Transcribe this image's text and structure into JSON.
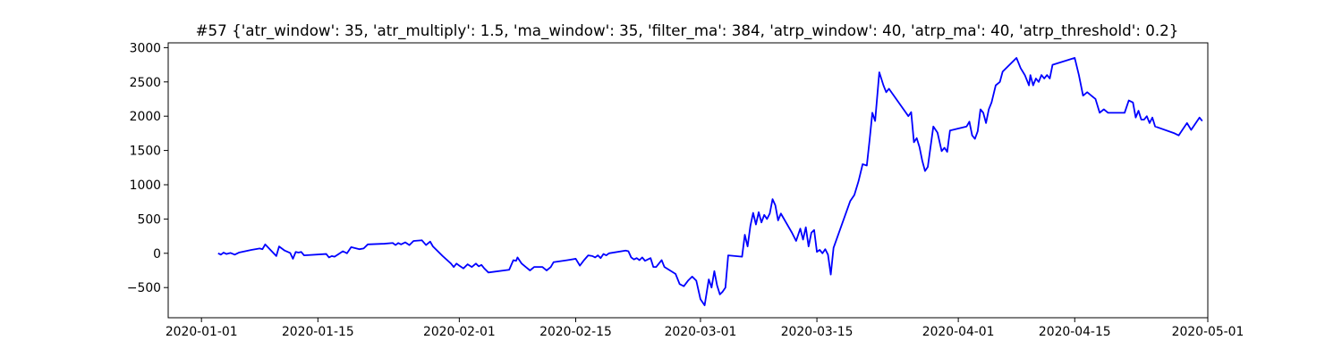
{
  "chart_data": {
    "type": "line",
    "title": "#57 {'atr_window': 35, 'atr_multiply': 1.5, 'ma_window': 35, 'filter_ma': 384, 'atrp_window': 40, 'atrp_ma': 40, 'atrp_threshold': 0.2}",
    "xlabel": "",
    "ylabel": "",
    "x_axis": {
      "kind": "date",
      "range": [
        "2019-12-28",
        "2020-05-01"
      ],
      "ticks": [
        "2020-01-01",
        "2020-01-15",
        "2020-02-01",
        "2020-02-15",
        "2020-03-01",
        "2020-03-15",
        "2020-04-01",
        "2020-04-15",
        "2020-05-01"
      ]
    },
    "y_axis": {
      "range": [
        -940,
        3070
      ],
      "ticks": [
        -500,
        0,
        500,
        1000,
        1500,
        2000,
        2500,
        3000
      ],
      "tick_labels": [
        "−500",
        "0",
        "500",
        "1000",
        "1500",
        "2000",
        "2500",
        "3000"
      ]
    },
    "grid": false,
    "legend": "none",
    "series": [
      {
        "color": "#0000ff",
        "points": [
          [
            "2020-01-03",
            0
          ],
          [
            "2020-01-03T08",
            -20
          ],
          [
            "2020-01-03T16",
            10
          ],
          [
            "2020-01-04",
            -10
          ],
          [
            "2020-01-04T12",
            5
          ],
          [
            "2020-01-05",
            -20
          ],
          [
            "2020-01-05T12",
            10
          ],
          [
            "2020-01-07",
            50
          ],
          [
            "2020-01-08",
            70
          ],
          [
            "2020-01-08T08",
            60
          ],
          [
            "2020-01-08T16",
            130
          ],
          [
            "2020-01-10",
            -40
          ],
          [
            "2020-01-10T08",
            100
          ],
          [
            "2020-01-11",
            40
          ],
          [
            "2020-01-11T16",
            5
          ],
          [
            "2020-01-12",
            -80
          ],
          [
            "2020-01-12T08",
            20
          ],
          [
            "2020-01-12T16",
            10
          ],
          [
            "2020-01-13",
            20
          ],
          [
            "2020-01-13T08",
            -30
          ],
          [
            "2020-01-16",
            -10
          ],
          [
            "2020-01-16T08",
            -60
          ],
          [
            "2020-01-16T16",
            -40
          ],
          [
            "2020-01-17",
            -50
          ],
          [
            "2020-01-17T12",
            -10
          ],
          [
            "2020-01-18",
            30
          ],
          [
            "2020-01-18T12",
            0
          ],
          [
            "2020-01-19",
            90
          ],
          [
            "2020-01-20",
            60
          ],
          [
            "2020-01-20T12",
            70
          ],
          [
            "2020-01-21",
            130
          ],
          [
            "2020-01-23",
            140
          ],
          [
            "2020-01-24",
            150
          ],
          [
            "2020-01-24T08",
            120
          ],
          [
            "2020-01-24T16",
            150
          ],
          [
            "2020-01-25",
            130
          ],
          [
            "2020-01-25T12",
            160
          ],
          [
            "2020-01-26",
            120
          ],
          [
            "2020-01-26T12",
            180
          ],
          [
            "2020-01-27T12",
            190
          ],
          [
            "2020-01-28",
            120
          ],
          [
            "2020-01-28T12",
            170
          ],
          [
            "2020-01-28T20",
            100
          ],
          [
            "2020-01-30",
            -40
          ],
          [
            "2020-01-31",
            -150
          ],
          [
            "2020-01-31T08",
            -200
          ],
          [
            "2020-01-31T16",
            -150
          ],
          [
            "2020-02-01",
            -180
          ],
          [
            "2020-02-01T12",
            -220
          ],
          [
            "2020-02-02",
            -160
          ],
          [
            "2020-02-02T12",
            -200
          ],
          [
            "2020-02-03",
            -150
          ],
          [
            "2020-02-03T08",
            -190
          ],
          [
            "2020-02-03T16",
            -170
          ],
          [
            "2020-02-04",
            -220
          ],
          [
            "2020-02-04T12",
            -280
          ],
          [
            "2020-02-07",
            -240
          ],
          [
            "2020-02-07T12",
            -100
          ],
          [
            "2020-02-07T20",
            -110
          ],
          [
            "2020-02-08",
            -60
          ],
          [
            "2020-02-08T12",
            -150
          ],
          [
            "2020-02-09",
            -200
          ],
          [
            "2020-02-09T12",
            -250
          ],
          [
            "2020-02-10",
            -200
          ],
          [
            "2020-02-11",
            -200
          ],
          [
            "2020-02-11T12",
            -250
          ],
          [
            "2020-02-12",
            -200
          ],
          [
            "2020-02-12T08",
            -130
          ],
          [
            "2020-02-14",
            -100
          ],
          [
            "2020-02-15",
            -80
          ],
          [
            "2020-02-15T12",
            -180
          ],
          [
            "2020-02-16",
            -100
          ],
          [
            "2020-02-16T12",
            -30
          ],
          [
            "2020-02-17",
            -40
          ],
          [
            "2020-02-17T08",
            -60
          ],
          [
            "2020-02-17T16",
            -30
          ],
          [
            "2020-02-18",
            -70
          ],
          [
            "2020-02-18T08",
            -10
          ],
          [
            "2020-02-18T16",
            -30
          ],
          [
            "2020-02-19",
            0
          ],
          [
            "2020-02-21",
            40
          ],
          [
            "2020-02-21T08",
            30
          ],
          [
            "2020-02-21T16",
            -60
          ],
          [
            "2020-02-22",
            -90
          ],
          [
            "2020-02-22T08",
            -70
          ],
          [
            "2020-02-22T16",
            -100
          ],
          [
            "2020-02-23",
            -60
          ],
          [
            "2020-02-23T08",
            -110
          ],
          [
            "2020-02-23T16",
            -90
          ],
          [
            "2020-02-24",
            -70
          ],
          [
            "2020-02-24T08",
            -200
          ],
          [
            "2020-02-24T16",
            -200
          ],
          [
            "2020-02-25",
            -150
          ],
          [
            "2020-02-25T08",
            -100
          ],
          [
            "2020-02-25T16",
            -200
          ],
          [
            "2020-02-27",
            -300
          ],
          [
            "2020-02-27T12",
            -450
          ],
          [
            "2020-02-28",
            -480
          ],
          [
            "2020-02-28T12",
            -400
          ],
          [
            "2020-02-29",
            -340
          ],
          [
            "2020-02-29T12",
            -400
          ],
          [
            "2020-03-01",
            -670
          ],
          [
            "2020-03-01T12",
            -760
          ],
          [
            "2020-03-02",
            -380
          ],
          [
            "2020-03-02T08",
            -500
          ],
          [
            "2020-03-02T16",
            -260
          ],
          [
            "2020-03-03",
            -470
          ],
          [
            "2020-03-03T08",
            -600
          ],
          [
            "2020-03-03T16",
            -560
          ],
          [
            "2020-03-04",
            -500
          ],
          [
            "2020-03-04T08",
            -30
          ],
          [
            "2020-03-06",
            -50
          ],
          [
            "2020-03-06T08",
            270
          ],
          [
            "2020-03-06T16",
            100
          ],
          [
            "2020-03-07",
            400
          ],
          [
            "2020-03-07T08",
            590
          ],
          [
            "2020-03-07T16",
            420
          ],
          [
            "2020-03-08",
            600
          ],
          [
            "2020-03-08T08",
            450
          ],
          [
            "2020-03-08T16",
            560
          ],
          [
            "2020-03-09",
            500
          ],
          [
            "2020-03-09T08",
            580
          ],
          [
            "2020-03-09T16",
            790
          ],
          [
            "2020-03-10",
            700
          ],
          [
            "2020-03-10T08",
            480
          ],
          [
            "2020-03-10T16",
            580
          ],
          [
            "2020-03-12",
            300
          ],
          [
            "2020-03-12T12",
            180
          ],
          [
            "2020-03-13",
            360
          ],
          [
            "2020-03-13T08",
            200
          ],
          [
            "2020-03-13T16",
            380
          ],
          [
            "2020-03-14",
            100
          ],
          [
            "2020-03-14T08",
            300
          ],
          [
            "2020-03-14T16",
            340
          ],
          [
            "2020-03-15",
            20
          ],
          [
            "2020-03-15T08",
            50
          ],
          [
            "2020-03-15T16",
            0
          ],
          [
            "2020-03-16",
            60
          ],
          [
            "2020-03-16T08",
            -20
          ],
          [
            "2020-03-16T16",
            -310
          ],
          [
            "2020-03-17",
            80
          ],
          [
            "2020-03-19",
            760
          ],
          [
            "2020-03-19T12",
            850
          ],
          [
            "2020-03-20",
            1050
          ],
          [
            "2020-03-20T12",
            1300
          ],
          [
            "2020-03-21",
            1280
          ],
          [
            "2020-03-21T08",
            1650
          ],
          [
            "2020-03-21T16",
            2050
          ],
          [
            "2020-03-22",
            1930
          ],
          [
            "2020-03-22T12",
            2640
          ],
          [
            "2020-03-23",
            2450
          ],
          [
            "2020-03-23T08",
            2350
          ],
          [
            "2020-03-23T16",
            2400
          ],
          [
            "2020-03-26",
            2000
          ],
          [
            "2020-03-26T08",
            2060
          ],
          [
            "2020-03-26T16",
            1620
          ],
          [
            "2020-03-27",
            1680
          ],
          [
            "2020-03-27T08",
            1550
          ],
          [
            "2020-03-27T16",
            1350
          ],
          [
            "2020-03-28",
            1200
          ],
          [
            "2020-03-28T08",
            1260
          ],
          [
            "2020-03-29",
            1850
          ],
          [
            "2020-03-29T12",
            1760
          ],
          [
            "2020-03-30",
            1490
          ],
          [
            "2020-03-30T08",
            1540
          ],
          [
            "2020-03-30T16",
            1480
          ],
          [
            "2020-03-31",
            1790
          ],
          [
            "2020-04-02",
            1850
          ],
          [
            "2020-04-02T08",
            1920
          ],
          [
            "2020-04-02T16",
            1720
          ],
          [
            "2020-04-03",
            1670
          ],
          [
            "2020-04-03T08",
            1780
          ],
          [
            "2020-04-03T16",
            2100
          ],
          [
            "2020-04-04",
            2050
          ],
          [
            "2020-04-04T08",
            1900
          ],
          [
            "2020-04-04T16",
            2100
          ],
          [
            "2020-04-05",
            2200
          ],
          [
            "2020-04-05T12",
            2450
          ],
          [
            "2020-04-06",
            2500
          ],
          [
            "2020-04-06T08",
            2650
          ],
          [
            "2020-04-08",
            2850
          ],
          [
            "2020-04-08T12",
            2700
          ],
          [
            "2020-04-09",
            2600
          ],
          [
            "2020-04-09T12",
            2450
          ],
          [
            "2020-04-09T16",
            2600
          ],
          [
            "2020-04-10",
            2450
          ],
          [
            "2020-04-10T08",
            2550
          ],
          [
            "2020-04-10T16",
            2500
          ],
          [
            "2020-04-11",
            2600
          ],
          [
            "2020-04-11T08",
            2550
          ],
          [
            "2020-04-11T16",
            2600
          ],
          [
            "2020-04-12",
            2550
          ],
          [
            "2020-04-12T08",
            2750
          ],
          [
            "2020-04-15",
            2850
          ],
          [
            "2020-04-15T12",
            2600
          ],
          [
            "2020-04-16",
            2300
          ],
          [
            "2020-04-16T12",
            2350
          ],
          [
            "2020-04-17",
            2300
          ],
          [
            "2020-04-17T12",
            2250
          ],
          [
            "2020-04-18",
            2050
          ],
          [
            "2020-04-18T12",
            2100
          ],
          [
            "2020-04-19",
            2050
          ],
          [
            "2020-04-21",
            2050
          ],
          [
            "2020-04-21T12",
            2230
          ],
          [
            "2020-04-22",
            2200
          ],
          [
            "2020-04-22T08",
            1980
          ],
          [
            "2020-04-22T16",
            2080
          ],
          [
            "2020-04-23",
            1950
          ],
          [
            "2020-04-23T08",
            1950
          ],
          [
            "2020-04-23T16",
            2000
          ],
          [
            "2020-04-24",
            1900
          ],
          [
            "2020-04-24T08",
            1980
          ],
          [
            "2020-04-24T16",
            1850
          ],
          [
            "2020-04-27",
            1750
          ],
          [
            "2020-04-27T12",
            1720
          ],
          [
            "2020-04-28",
            1810
          ],
          [
            "2020-04-28T12",
            1900
          ],
          [
            "2020-04-29",
            1800
          ],
          [
            "2020-04-29T12",
            1890
          ],
          [
            "2020-04-30",
            1980
          ],
          [
            "2020-04-30T08",
            1930
          ]
        ]
      }
    ]
  }
}
